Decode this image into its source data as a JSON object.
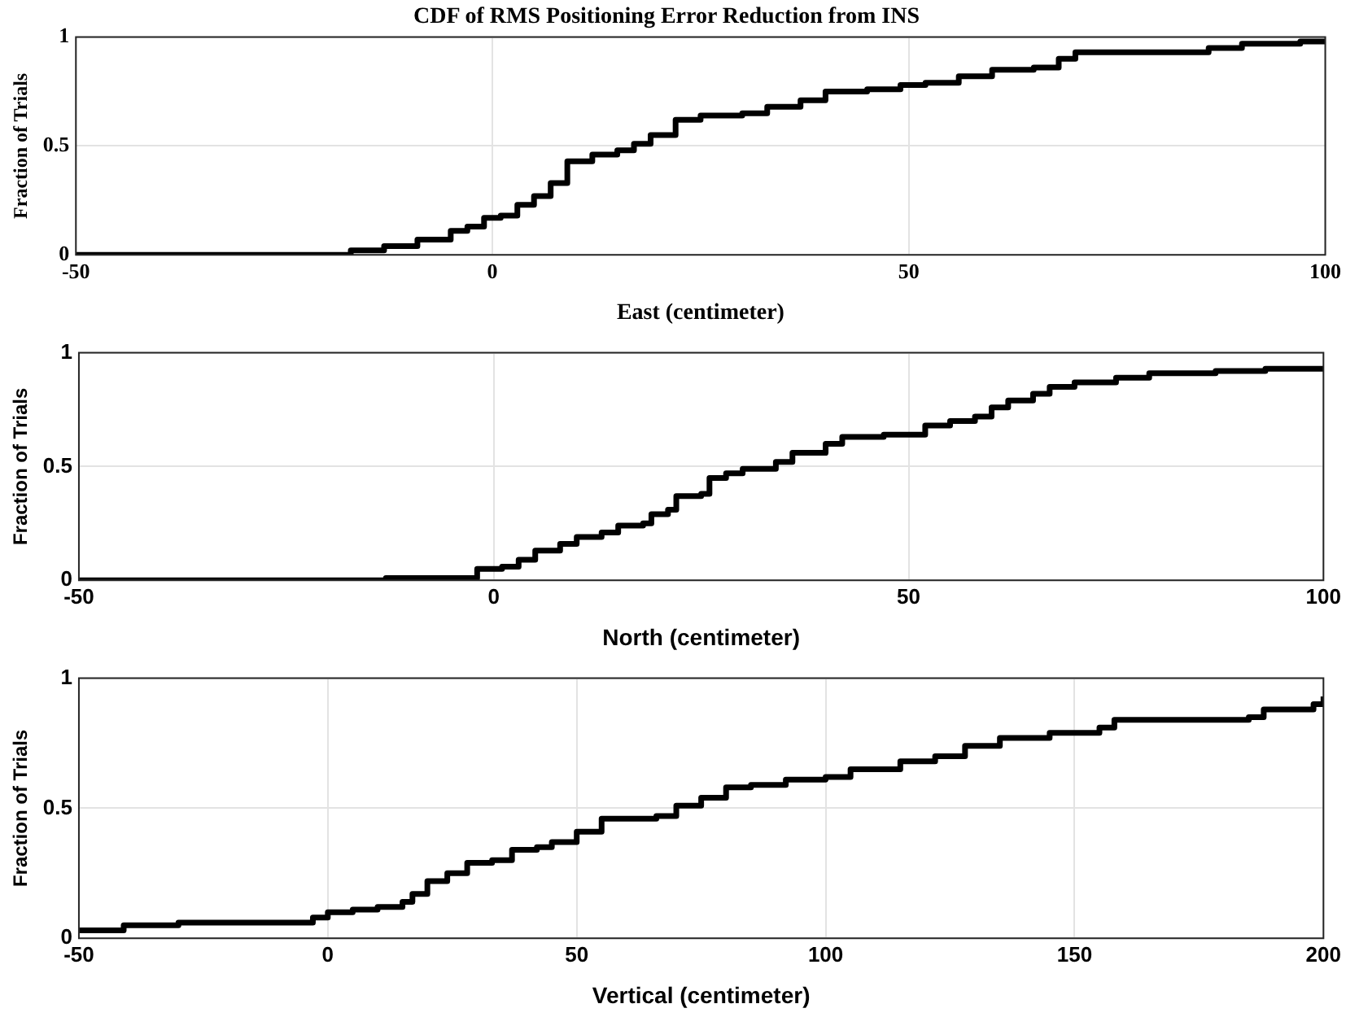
{
  "chart_data": [
    {
      "type": "step",
      "title": "CDF of RMS Positioning Error Reduction from INS",
      "xlabel": "East (centimeter)",
      "ylabel": "Fraction of Trials",
      "color": "#000000",
      "grid": true,
      "xlim": [
        -50,
        100
      ],
      "ylim": [
        0,
        1
      ],
      "xticks": [
        -50,
        0,
        50,
        100
      ],
      "yticks": [
        0,
        0.5,
        1
      ],
      "x": [
        -50,
        -18,
        -17,
        -13,
        -9,
        -5,
        -3,
        -1,
        1,
        3,
        5,
        7,
        9,
        12,
        15,
        17,
        19,
        22,
        25,
        30,
        33,
        37,
        40,
        45,
        49,
        52,
        56,
        60,
        65,
        68,
        70,
        84,
        86,
        90,
        96,
        97,
        100
      ],
      "values": [
        0,
        0,
        0.02,
        0.04,
        0.07,
        0.11,
        0.13,
        0.17,
        0.18,
        0.23,
        0.27,
        0.33,
        0.43,
        0.46,
        0.48,
        0.51,
        0.55,
        0.62,
        0.64,
        0.65,
        0.68,
        0.71,
        0.75,
        0.76,
        0.78,
        0.79,
        0.82,
        0.85,
        0.86,
        0.9,
        0.93,
        0.93,
        0.95,
        0.97,
        0.97,
        0.98,
        0.98
      ]
    },
    {
      "type": "step",
      "xlabel": "North (centimeter)",
      "ylabel": "Fraction of Trials",
      "color": "#000000",
      "grid": true,
      "xlim": [
        -50,
        100
      ],
      "ylim": [
        0,
        1
      ],
      "xticks": [
        -50,
        0,
        50,
        100
      ],
      "yticks": [
        0,
        0.5,
        1
      ],
      "x": [
        -50,
        -14,
        -13,
        -3,
        -2,
        1,
        3,
        5,
        8,
        10,
        13,
        15,
        18,
        19,
        21,
        22,
        25,
        26,
        28,
        30,
        34,
        36,
        40,
        42,
        47,
        50,
        52,
        55,
        58,
        60,
        62,
        65,
        67,
        70,
        75,
        79,
        87,
        93,
        100
      ],
      "values": [
        0,
        0,
        0.01,
        0.01,
        0.05,
        0.06,
        0.09,
        0.13,
        0.16,
        0.19,
        0.21,
        0.24,
        0.25,
        0.29,
        0.31,
        0.37,
        0.38,
        0.45,
        0.47,
        0.49,
        0.52,
        0.56,
        0.6,
        0.63,
        0.64,
        0.64,
        0.68,
        0.7,
        0.72,
        0.76,
        0.79,
        0.82,
        0.85,
        0.87,
        0.89,
        0.91,
        0.92,
        0.93,
        0.93
      ]
    },
    {
      "type": "step",
      "xlabel": "Vertical (centimeter)",
      "ylabel": "Fraction of Trials",
      "color": "#000000",
      "grid": true,
      "xlim": [
        -50,
        200
      ],
      "ylim": [
        0,
        1
      ],
      "xticks": [
        -50,
        0,
        50,
        100,
        150,
        200
      ],
      "yticks": [
        0,
        0.5,
        1
      ],
      "x": [
        -50,
        -42,
        -41,
        -30,
        -7,
        -3,
        0,
        5,
        10,
        15,
        17,
        20,
        24,
        28,
        33,
        37,
        42,
        45,
        50,
        55,
        62,
        66,
        70,
        75,
        80,
        85,
        92,
        100,
        105,
        115,
        122,
        128,
        135,
        145,
        155,
        158,
        165,
        185,
        188,
        198,
        200
      ],
      "values": [
        0.03,
        0.03,
        0.05,
        0.06,
        0.06,
        0.08,
        0.1,
        0.11,
        0.12,
        0.14,
        0.17,
        0.22,
        0.25,
        0.29,
        0.3,
        0.34,
        0.35,
        0.37,
        0.41,
        0.46,
        0.46,
        0.47,
        0.51,
        0.54,
        0.58,
        0.59,
        0.61,
        0.62,
        0.65,
        0.68,
        0.7,
        0.74,
        0.77,
        0.79,
        0.81,
        0.84,
        0.84,
        0.85,
        0.88,
        0.9,
        0.93
      ]
    }
  ]
}
